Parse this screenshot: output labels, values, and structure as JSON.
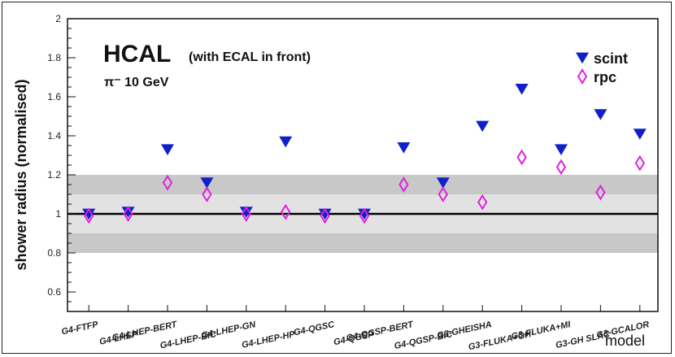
{
  "chart_data": {
    "type": "scatter",
    "title": "HCAL",
    "title_note": "(with ECAL in front)",
    "subtitle": "π⁻ 10 GeV",
    "xlabel": "model",
    "ylabel": "shower radius (normalised)",
    "ylim": [
      0.5,
      2.0
    ],
    "yticks": [
      "0.6",
      "0.8",
      "1",
      "1.2",
      "1.4",
      "1.6",
      "1.8",
      "2"
    ],
    "categories": [
      "G4-FTFP",
      "G4-LHEP",
      "G4-LHEP-BERT",
      "G4-LHEP-BIC",
      "G4-LHEP-GN",
      "G4-LHEP-HP",
      "G4-QGSC",
      "G4-QGSP",
      "G4-QGSP-BERT",
      "G4-QGSP-BIC",
      "G3-GHEISHA",
      "G3-FLUKA+GH",
      "G3-FLUKA+MI",
      "G3-GH SLAC",
      "G3-GCALOR"
    ],
    "series": [
      {
        "name": "scint",
        "marker": "triangle-down",
        "color": "#1020c8",
        "values": [
          1.0,
          1.01,
          1.33,
          1.16,
          1.01,
          1.37,
          1.0,
          1.0,
          1.34,
          1.16,
          1.45,
          1.64,
          1.33,
          1.51,
          1.41
        ]
      },
      {
        "name": "rpc",
        "marker": "open-diamond",
        "color": "#e020e0",
        "values": [
          0.99,
          1.0,
          1.16,
          1.1,
          1.0,
          1.01,
          0.99,
          0.99,
          1.15,
          1.1,
          1.06,
          1.29,
          1.24,
          1.11,
          1.26
        ]
      }
    ],
    "bands": [
      {
        "range": [
          0.8,
          1.2
        ],
        "color": "#c8c8c8"
      },
      {
        "range": [
          0.9,
          1.1
        ],
        "color": "#e2e2e2"
      }
    ],
    "reference_line": 1.0,
    "legend_position": "top-right",
    "grid": false
  }
}
